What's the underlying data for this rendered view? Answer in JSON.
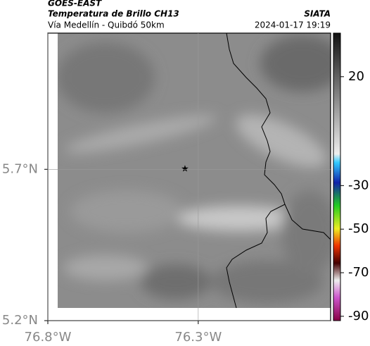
{
  "header": {
    "title": "GOES-EAST",
    "subtitle": "Temperatura de Brillo CH13",
    "location": "Vía Medellín - Quibdó 50km",
    "source": "SIATA",
    "datetime": "2024-01-17 19:19"
  },
  "map": {
    "ylim": [
      5.2,
      6.15
    ],
    "xlim": [
      -76.8,
      -75.86
    ],
    "yticks": [
      {
        "value": 5.7,
        "label": "5.7°N"
      },
      {
        "value": 5.2,
        "label": "5.2°N"
      }
    ],
    "xticks": [
      {
        "value": -76.8,
        "label": "76.8°W"
      },
      {
        "value": -76.3,
        "label": "76.3°W"
      }
    ],
    "grid": true
  },
  "colorbar": {
    "lim": [
      40,
      -92
    ],
    "ticks": [
      20,
      -30,
      -50,
      -70,
      -90
    ]
  }
}
